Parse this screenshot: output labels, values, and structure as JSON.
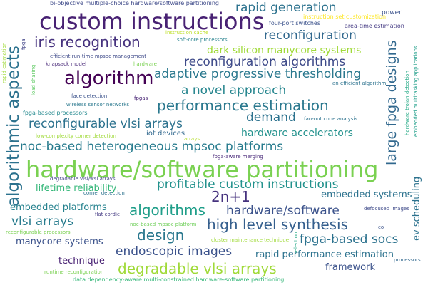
{
  "words": [
    {
      "text": "bi-objective multiple-choice hardware/software partitioning",
      "color": "#3e4a89"
    },
    {
      "text": "custom instructions",
      "color": "#482173"
    },
    {
      "text": "rapid generation",
      "color": "#2c728e"
    },
    {
      "text": "instruction set customization",
      "color": "#fde725"
    },
    {
      "text": "power",
      "color": "#3b528b"
    },
    {
      "text": "algorithmic aspects",
      "color": "#2c728e"
    },
    {
      "text": "large fpga designs",
      "color": "#31688e"
    },
    {
      "text": "four-port switches",
      "color": "#3b528b"
    },
    {
      "text": "area-time estimation",
      "color": "#443a83"
    },
    {
      "text": "iris recognition",
      "color": "#46327e"
    },
    {
      "text": "reconfiguration",
      "color": "#31688e"
    },
    {
      "text": "instruction cache",
      "color": "#bddf26"
    },
    {
      "text": "soft-core processors",
      "color": "#26828e"
    },
    {
      "text": "dark silicon manycore systems",
      "color": "#a0da39"
    },
    {
      "text": "rapid estimation",
      "color": "#a0da39"
    },
    {
      "text": "fpga",
      "color": "#414487"
    },
    {
      "text": "efficient run-time mpsoc management",
      "color": "#3e4a89"
    },
    {
      "text": "knapsack model",
      "color": "#482878"
    },
    {
      "text": "hardware",
      "color": "#7ad151"
    },
    {
      "text": "reconfiguration algorithms",
      "color": "#3e4a89"
    },
    {
      "text": "algorithm",
      "color": "#440154"
    },
    {
      "text": "adaptive progressive thresholding",
      "color": "#2a788e"
    },
    {
      "text": "load sharing",
      "color": "#5ec962"
    },
    {
      "text": "an efficient algorithm",
      "color": "#2c728e"
    },
    {
      "text": "hardware trojan detection",
      "color": "#22a884"
    },
    {
      "text": "embedded multitasking applications",
      "color": "#1f9e89"
    },
    {
      "text": "a novel approach",
      "color": "#25858e"
    },
    {
      "text": "face detection",
      "color": "#3b528b"
    },
    {
      "text": "fpgas",
      "color": "#482475"
    },
    {
      "text": "performance estimation",
      "color": "#2a788e"
    },
    {
      "text": "wireless sensor networks",
      "color": "#2a788e"
    },
    {
      "text": "fpga-based processors",
      "color": "#23898e"
    },
    {
      "text": "demand",
      "color": "#2c728e"
    },
    {
      "text": "reconfigurable vlsi arrays",
      "color": "#2c728e"
    },
    {
      "text": "fan-out cone analysis",
      "color": "#2c728e"
    },
    {
      "text": "hardware accelerators",
      "color": "#21918c"
    },
    {
      "text": "iot devices",
      "color": "#31688e"
    },
    {
      "text": "low-complexity corner detection",
      "color": "#a0da39"
    },
    {
      "text": "arrays",
      "color": "#b5de2b"
    },
    {
      "text": "noc-based heterogeneous mpsoc platforms",
      "color": "#287c8e"
    },
    {
      "text": "fpga-aware merging",
      "color": "#482878"
    },
    {
      "text": "hardware/software partitioning",
      "color": "#7ad151"
    },
    {
      "text": "ev scheduling",
      "color": "#2c728e"
    },
    {
      "text": "degradable vlsi/wsi arrays",
      "color": "#414487"
    },
    {
      "text": "lifetime reliability",
      "color": "#35b779"
    },
    {
      "text": "profitable custom instructions",
      "color": "#21918c"
    },
    {
      "text": "2n+1",
      "color": "#46327e"
    },
    {
      "text": "embedded systems",
      "color": "#2c728e"
    },
    {
      "text": "corner detection",
      "color": "#2c728e"
    },
    {
      "text": "embedded platforms",
      "color": "#26828e"
    },
    {
      "text": "algorithms",
      "color": "#1f9e89"
    },
    {
      "text": "hardware/software",
      "color": "#3b528b"
    },
    {
      "text": "flat cordic",
      "color": "#443a83"
    },
    {
      "text": "defocused images",
      "color": "#3e4a89"
    },
    {
      "text": "vlsi arrays",
      "color": "#287c8e"
    },
    {
      "text": "high level synthesis",
      "color": "#355f8d"
    },
    {
      "text": "reconfigurable processors",
      "color": "#7ad151"
    },
    {
      "text": "noc-based mpsoc platform",
      "color": "#6ece58"
    },
    {
      "text": "design",
      "color": "#2a788e"
    },
    {
      "text": "cluster maintenance technique",
      "color": "#a0da39"
    },
    {
      "text": "fpga-based socs",
      "color": "#2c728e"
    },
    {
      "text": "manycore systems",
      "color": "#3b528b"
    },
    {
      "text": "endoscopic images",
      "color": "#3b528b"
    },
    {
      "text": "selection",
      "color": "#22a884"
    },
    {
      "text": "co",
      "color": "#3b528b"
    },
    {
      "text": "processors",
      "color": "#31688e"
    },
    {
      "text": "technique",
      "color": "#482173"
    },
    {
      "text": "rapid performance estimation",
      "color": "#2c728e"
    },
    {
      "text": "degradable vlsi arrays",
      "color": "#a0da39"
    },
    {
      "text": "framework",
      "color": "#3b528b"
    },
    {
      "text": "runtime reconfiguration",
      "color": "#7ad151"
    },
    {
      "text": "data dependency-aware multi-constrained hardware-software partitioning",
      "color": "#35b779"
    }
  ]
}
